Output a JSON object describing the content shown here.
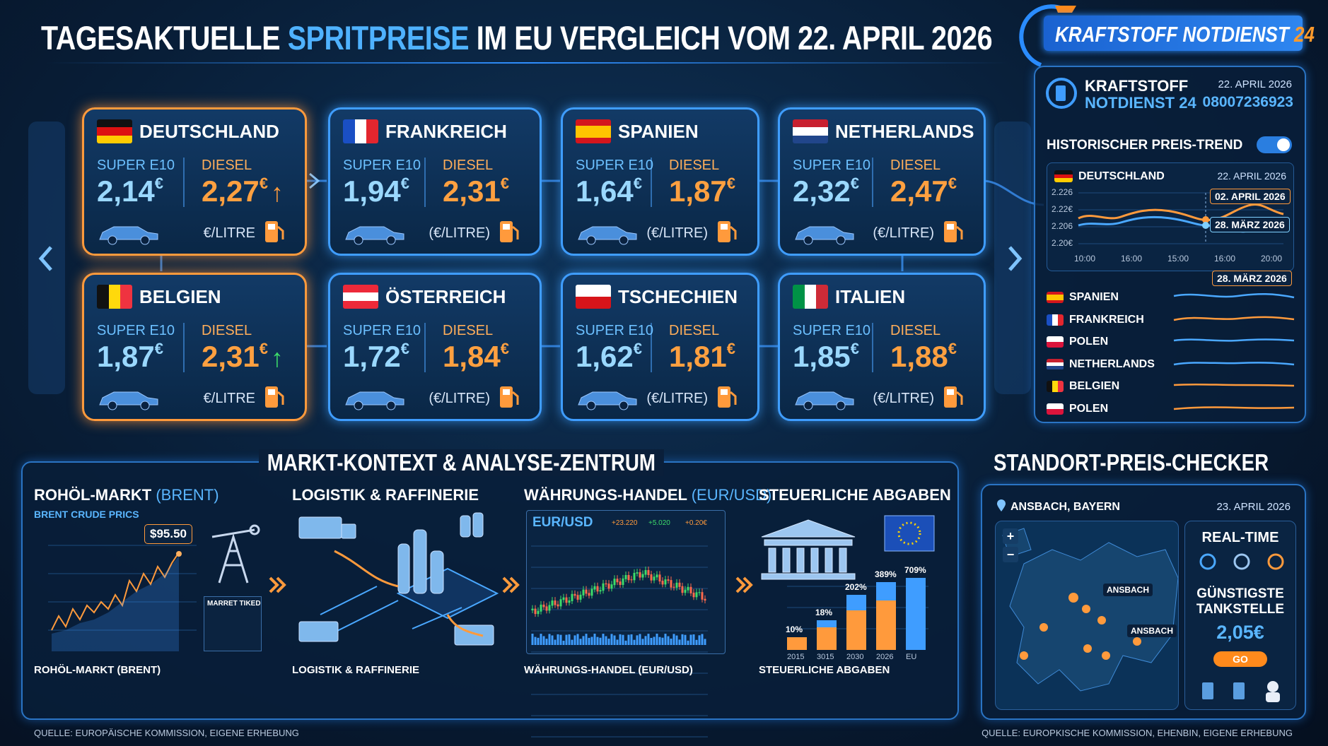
{
  "header": {
    "title_start": "TAGESAKTUELLE",
    "title_highlight": "SPRITPREISE",
    "title_end": "IM EU VERGLEICH VOM 22. APRIL 2026",
    "brand": "KRAFTSTOFF NOTDIENST",
    "brand_number": "24"
  },
  "countries": [
    {
      "name": "DEUTSCHLAND",
      "flag": {
        "dir": "h",
        "colors": [
          "#111111",
          "#dd1111",
          "#ffcc00"
        ]
      },
      "highlight": true,
      "super_label": "SUPER E10",
      "super": {
        "value": "2,14",
        "unit": "€"
      },
      "diesel_label": "DIESEL",
      "diesel": {
        "value": "2,27",
        "unit": "€"
      },
      "trend": "↑",
      "trend_color": "#ff9a3c",
      "unit": "€/LITRE"
    },
    {
      "name": "FRANKREICH",
      "flag": {
        "dir": "v",
        "colors": [
          "#1a4fc4",
          "#ffffff",
          "#e3262e"
        ]
      },
      "highlight": false,
      "super_label": "SUPER E10",
      "super": {
        "value": "1,94",
        "unit": "€"
      },
      "diesel_label": "DIESEL",
      "diesel": {
        "value": "2,31",
        "unit": "€"
      },
      "unit": "(€/LITRE)"
    },
    {
      "name": "SPANIEN",
      "flag": {
        "dir": "h",
        "colors": [
          "#d4161d",
          "#ffc400",
          "#ffc400",
          "#d4161d"
        ]
      },
      "highlight": false,
      "super_label": "SUPER E10",
      "super": {
        "value": "1,64",
        "unit": "€"
      },
      "diesel_label": "DIESEL",
      "diesel": {
        "value": "1,87",
        "unit": "€"
      },
      "unit": "(€/LITRE)"
    },
    {
      "name": "NETHERLANDS",
      "flag": {
        "dir": "h",
        "colors": [
          "#c8202f",
          "#ffffff",
          "#21468b"
        ]
      },
      "highlight": false,
      "super_label": "SUPER E10",
      "super": {
        "value": "2,32",
        "unit": "€"
      },
      "diesel_label": "DIESEL",
      "diesel": {
        "value": "2,47",
        "unit": "€"
      },
      "unit": "(€/LITRE)"
    },
    {
      "name": "BELGIEN",
      "flag": {
        "dir": "v",
        "colors": [
          "#111111",
          "#ffd90c",
          "#ef3340"
        ]
      },
      "highlight": true,
      "super_label": "SUPER E10",
      "super": {
        "value": "1,87",
        "unit": "€"
      },
      "diesel_label": "DIESEL",
      "diesel": {
        "value": "2,31",
        "unit": "€"
      },
      "trend": "↑",
      "trend_color": "#3ddc6a",
      "unit": "€/LITRE"
    },
    {
      "name": "ÖSTERREICH",
      "flag": {
        "dir": "h",
        "colors": [
          "#ed2939",
          "#ffffff",
          "#ed2939"
        ]
      },
      "highlight": false,
      "super_label": "SUPER E10",
      "super": {
        "value": "1,72",
        "unit": "€"
      },
      "diesel_label": "DIESEL",
      "diesel": {
        "value": "1,84",
        "unit": "€"
      },
      "unit": "(€/LITRE)"
    },
    {
      "name": "TSCHECHIEN",
      "flag": {
        "dir": "h",
        "colors": [
          "#ffffff",
          "#d7141a"
        ]
      },
      "highlight": false,
      "super_label": "SUPER E10",
      "super": {
        "value": "1,62",
        "unit": "€"
      },
      "diesel_label": "DIESEL",
      "diesel": {
        "value": "1,81",
        "unit": "€"
      },
      "unit": "(€/LITRE)"
    },
    {
      "name": "ITALIEN",
      "flag": {
        "dir": "v",
        "colors": [
          "#009246",
          "#ffffff",
          "#ce2b37"
        ]
      },
      "highlight": false,
      "super_label": "SUPER E10",
      "super": {
        "value": "1,85",
        "unit": "€"
      },
      "diesel_label": "DIESEL",
      "diesel": {
        "value": "1,88",
        "unit": "€"
      },
      "unit": "(€/LITRE)"
    }
  ],
  "sidebar": {
    "brand_line1": "KRAFTSTOFF",
    "brand_line2": "NOTDIENST 24",
    "date": "22. APRIL 2026",
    "phone": "08007236923",
    "trend_title": "HISTORISCHER PREIS-TREND",
    "chart": {
      "country": "DEUTSCHLAND",
      "date": "22. APRIL 2026",
      "yticks": [
        "2.226",
        "2.22€",
        "2.206",
        "2.20€"
      ],
      "xticks": [
        "10:00",
        "16:00",
        "15:00",
        "16:00",
        "20:00"
      ],
      "callout_1": "02. APRIL 2026",
      "callout_2": "28. MÄRZ 2026"
    },
    "list_callout": "28. MÄRZ 2026",
    "list": [
      {
        "name": "SPANIEN",
        "flag": {
          "dir": "h",
          "colors": [
            "#d4161d",
            "#ffc400",
            "#ffc400",
            "#d4161d"
          ]
        },
        "color": "#4aa8ff"
      },
      {
        "name": "FRANKREICH",
        "flag": {
          "dir": "v",
          "colors": [
            "#1a4fc4",
            "#ffffff",
            "#e3262e"
          ]
        },
        "color": "#ff9a3c"
      },
      {
        "name": "POLEN",
        "flag": {
          "dir": "h",
          "colors": [
            "#ffffff",
            "#dc143c"
          ]
        },
        "color": "#4aa8ff"
      },
      {
        "name": "NETHERLANDS",
        "flag": {
          "dir": "h",
          "colors": [
            "#c8202f",
            "#ffffff",
            "#21468b"
          ]
        },
        "color": "#4aa8ff"
      },
      {
        "name": "BELGIEN",
        "flag": {
          "dir": "v",
          "colors": [
            "#111111",
            "#ffd90c",
            "#ef3340"
          ]
        },
        "color": "#ff9a3c"
      },
      {
        "name": "POLEN",
        "flag": {
          "dir": "h",
          "colors": [
            "#ffffff",
            "#dc143c"
          ]
        },
        "color": "#ff9a3c"
      }
    ]
  },
  "market": {
    "title": "MARKT-KONTEXT & ANALYSE-ZENTRUM",
    "brent": {
      "title": "ROHÖL-MARKT",
      "title_sub": "(BRENT)",
      "chart_label": "BRENT CRUDE PRICS",
      "price": "$95.50",
      "ticker_title": "MARRET TIKED",
      "footer": "ROHÖL-MARKT (BRENT)"
    },
    "logistics": {
      "title": "LOGISTIK & RAFFINERIE",
      "footer": "LOGISTIK & RAFFINERIE"
    },
    "currency": {
      "title": "WÄHRUNGS-HANDEL",
      "title_sub": "(EUR/USD)",
      "pair": "EUR/USD",
      "stats": [
        "+23.220",
        "+5.020",
        "+0.20€"
      ],
      "footer": "WÄHRUNGS-HANDEL (EUR/USD)"
    },
    "taxes": {
      "title": "STEUERLICHE ABGABEN",
      "bar_labels": [
        "10%",
        "18%",
        "202%",
        "389%",
        "709%"
      ],
      "x_labels": [
        "2015",
        "3015",
        "2030",
        "2026",
        "EU"
      ],
      "footer": "STEUERLICHE ABGABEN"
    }
  },
  "locator": {
    "title": "STANDORT-PREIS-CHECKER",
    "location": "ANSBACH, BAYERN",
    "date": "23. APRIL 2026",
    "zoom_in": "+",
    "zoom_out": "−",
    "pin_1": "ANSBACH",
    "pin_2": "ANSBACH",
    "realtime": "REAL-TIME",
    "cheapest_1": "GÜNSTIGSTE",
    "cheapest_2": "TANKSTELLE",
    "price": {
      "value": "2,05",
      "unit": "€"
    },
    "button": "GO"
  },
  "footer": {
    "left": "QUELLE: EUROPÄISCHE KOMMISSION, EIGENE ERHEBUNG",
    "right": "QUELLE: EUROPKISCHE KOMMISSION, EHENBIN, EIGENE ERHEBUNG"
  }
}
